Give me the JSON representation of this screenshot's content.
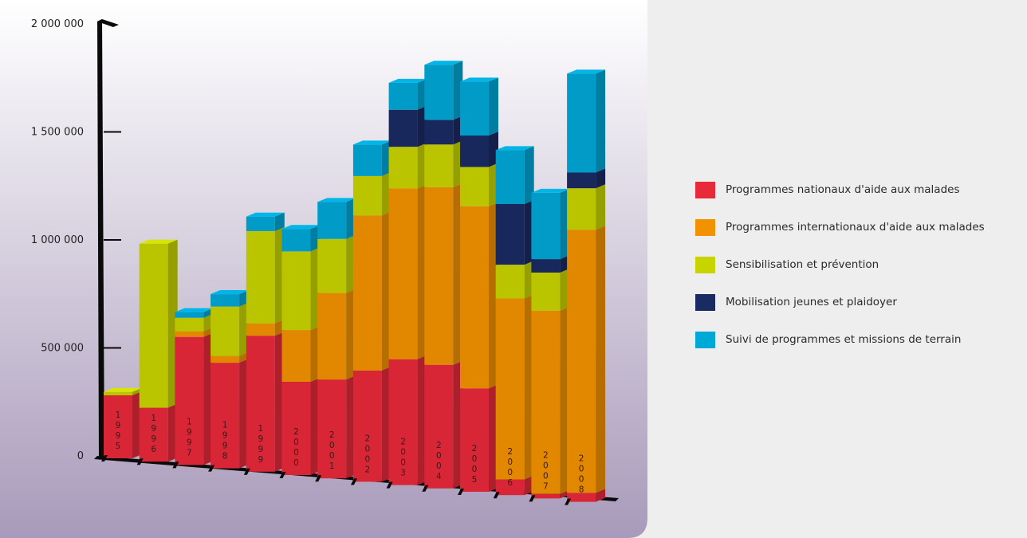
{
  "chart_data": {
    "type": "bar",
    "stacked": true,
    "categories": [
      "1995",
      "1996",
      "1997",
      "1998",
      "1999",
      "2000",
      "2001",
      "2002",
      "2003",
      "2004",
      "2005",
      "2006",
      "2007",
      "2008"
    ],
    "ylim": [
      0,
      2000000
    ],
    "yticks": [
      {
        "value": 0,
        "label": "0"
      },
      {
        "value": 500000,
        "label": "500 000"
      },
      {
        "value": 1000000,
        "label": "1 000 000"
      },
      {
        "value": 1500000,
        "label": "1 500 000"
      },
      {
        "value": 2000000,
        "label": "2 000 000"
      }
    ],
    "legend_position": "right",
    "series": [
      {
        "name": "Programmes nationaux d'aide aux malades",
        "color": "#e8293a",
        "values": [
          280000,
          240000,
          570000,
          470000,
          605000,
          415000,
          440000,
          495000,
          560000,
          550000,
          460000,
          70000,
          20000,
          40000
        ]
      },
      {
        "name": "Programmes internationaux d'aide aux malades",
        "color": "#f39200",
        "values": [
          0,
          0,
          25000,
          30000,
          55000,
          230000,
          385000,
          690000,
          760000,
          790000,
          810000,
          805000,
          815000,
          1170000
        ]
      },
      {
        "name": "Sensibilisation et prévention",
        "color": "#c8d400",
        "values": [
          15000,
          730000,
          60000,
          220000,
          410000,
          350000,
          240000,
          175000,
          185000,
          190000,
          175000,
          150000,
          170000,
          185000
        ]
      },
      {
        "name": "Mobilisation jeunes et plaidoyer",
        "color": "#1a2a63",
        "values": [
          0,
          0,
          0,
          0,
          0,
          0,
          0,
          0,
          165000,
          110000,
          140000,
          270000,
          60000,
          70000
        ]
      },
      {
        "name": "Suivi de programmes et missions de terrain",
        "color": "#00a8d6",
        "values": [
          0,
          0,
          25000,
          55000,
          65000,
          100000,
          165000,
          140000,
          120000,
          245000,
          240000,
          240000,
          295000,
          440000
        ]
      }
    ]
  }
}
